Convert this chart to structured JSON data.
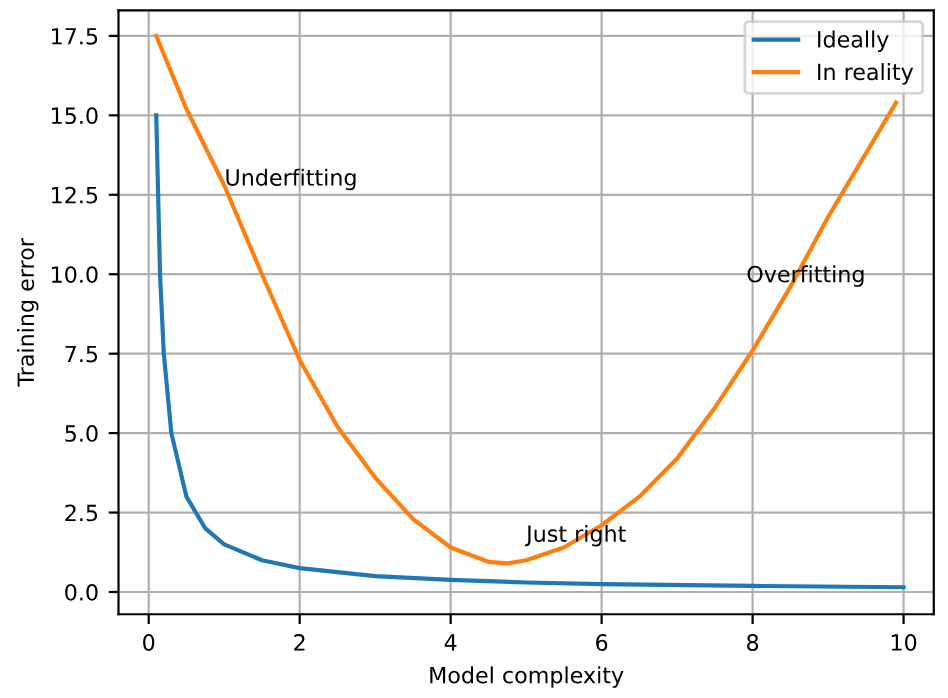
{
  "chart_data": {
    "type": "line",
    "xlabel": "Model complexity",
    "ylabel": "Training error",
    "series": [
      {
        "name": "Ideally",
        "color": "#1f77b4",
        "x": [
          0.1,
          0.15,
          0.2,
          0.3,
          0.5,
          0.75,
          1,
          1.5,
          2,
          3,
          4,
          5,
          6,
          8,
          10
        ],
        "values": [
          15,
          10,
          7.5,
          5,
          3,
          2,
          1.5,
          1,
          0.75,
          0.5,
          0.38,
          0.3,
          0.25,
          0.19,
          0.15
        ]
      },
      {
        "name": "In reality",
        "color": "#ff7f0e",
        "x": [
          0.1,
          0.5,
          1,
          1.5,
          2,
          2.5,
          3,
          3.5,
          4,
          4.5,
          4.75,
          5,
          5.5,
          6,
          6.5,
          7,
          7.5,
          8,
          8.5,
          9,
          9.5,
          9.9
        ],
        "values": [
          17.5,
          15.2,
          12.8,
          10,
          7.3,
          5.2,
          3.6,
          2.3,
          1.4,
          0.95,
          0.9,
          1.0,
          1.4,
          2.1,
          3.0,
          4.2,
          5.8,
          7.6,
          9.6,
          11.8,
          13.8,
          15.4
        ]
      }
    ],
    "annotations": [
      "Underfitting",
      "Just right",
      "Overfitting"
    ],
    "xlim": [
      -0.4,
      10.4
    ],
    "ylim": [
      -0.7,
      18.3
    ],
    "xticks": [
      0,
      2,
      4,
      6,
      8,
      10
    ],
    "yticks": [
      {
        "value": 0,
        "label": "0.0"
      },
      {
        "value": 2.5,
        "label": "2.5"
      },
      {
        "value": 5,
        "label": "5.0"
      },
      {
        "value": 7.5,
        "label": "7.5"
      },
      {
        "value": 10,
        "label": "10.0"
      },
      {
        "value": 12.5,
        "label": "12.5"
      },
      {
        "value": 15,
        "label": "15.0"
      },
      {
        "value": 17.5,
        "label": "17.5"
      }
    ],
    "grid": true,
    "legend": "top right"
  }
}
